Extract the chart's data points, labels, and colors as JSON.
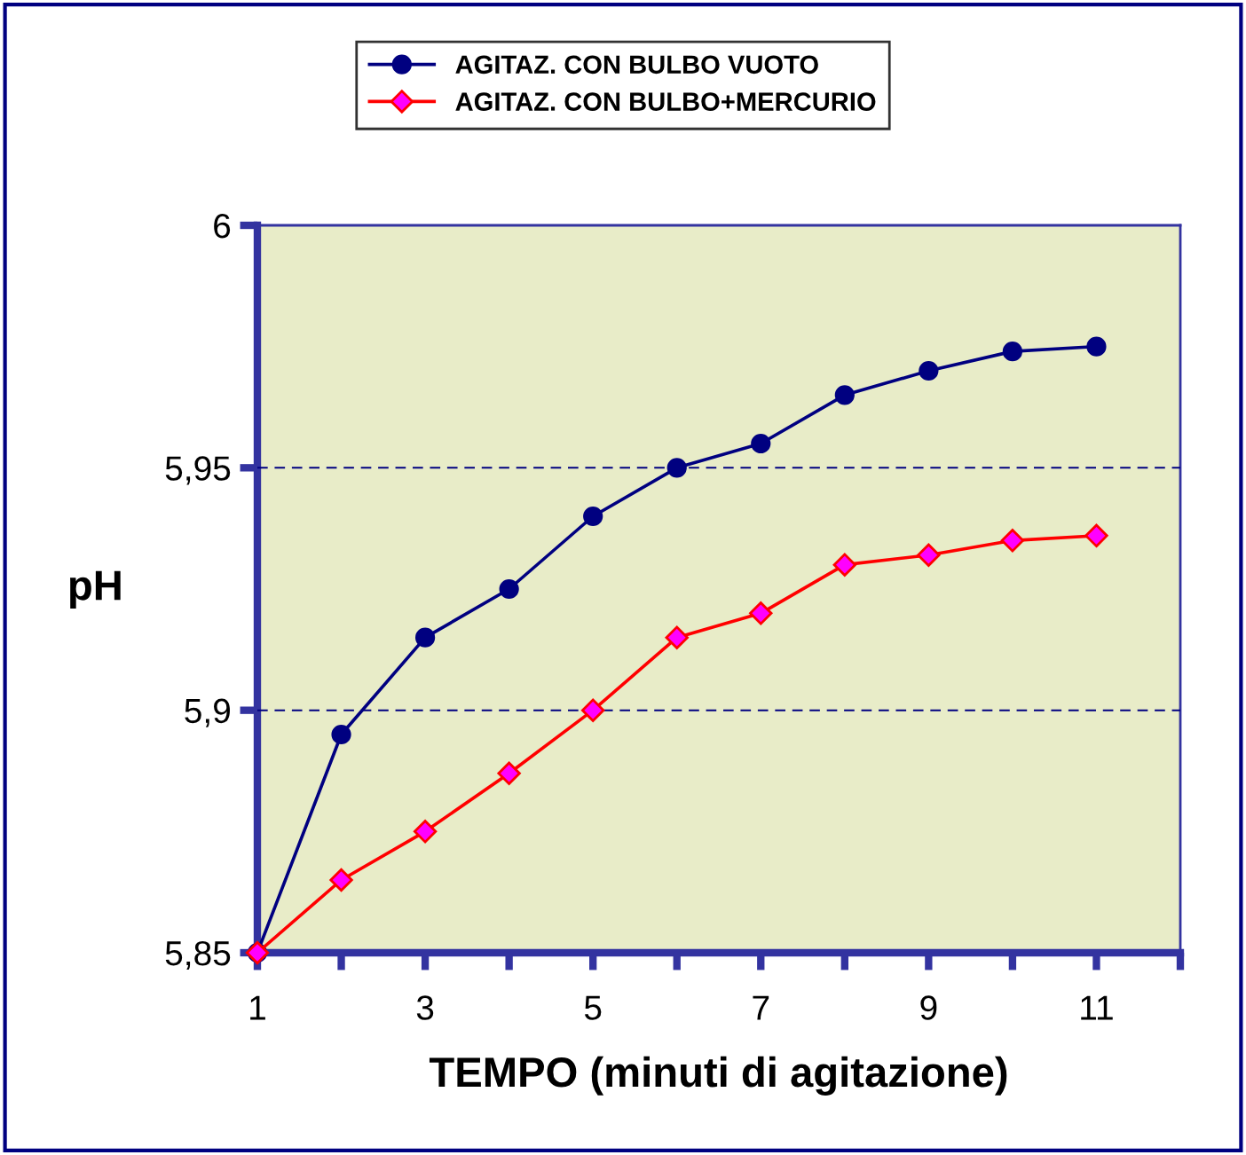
{
  "chart_data": {
    "type": "line",
    "xlabel": "TEMPO (minuti di agitazione)",
    "ylabel": "pH",
    "x": [
      1,
      2,
      3,
      4,
      5,
      6,
      7,
      8,
      9,
      10,
      11
    ],
    "series": [
      {
        "name": "AGITAZ. CON BULBO VUOTO",
        "color": "#000080",
        "marker": "circle",
        "values": [
          5.85,
          5.895,
          5.915,
          5.925,
          5.94,
          5.95,
          5.955,
          5.965,
          5.97,
          5.974,
          5.975
        ]
      },
      {
        "name": "AGITAZ. CON BULBO+MERCURIO",
        "color": "#ff0000",
        "marker": "diamond",
        "values": [
          5.85,
          5.865,
          5.875,
          5.887,
          5.9,
          5.915,
          5.92,
          5.93,
          5.932,
          5.935,
          5.936
        ]
      }
    ],
    "xlim": [
      1,
      12
    ],
    "xticks": [
      1,
      {
        "value": 2,
        "label": null
      },
      3,
      {
        "value": 4,
        "label": null
      },
      5,
      {
        "value": 6,
        "label": null
      },
      7,
      {
        "value": 8,
        "label": null
      },
      9,
      {
        "value": 10,
        "label": null
      },
      11,
      {
        "value": 12,
        "label": null
      }
    ],
    "ylim": [
      5.85,
      6
    ],
    "yticks": [
      {
        "value": 5.85,
        "label": "5,85"
      },
      {
        "value": 5.9,
        "label": "5,9"
      },
      {
        "value": 5.95,
        "label": "5,95"
      },
      6
    ],
    "grid": "y",
    "legend": "top",
    "line_style": "solid"
  }
}
